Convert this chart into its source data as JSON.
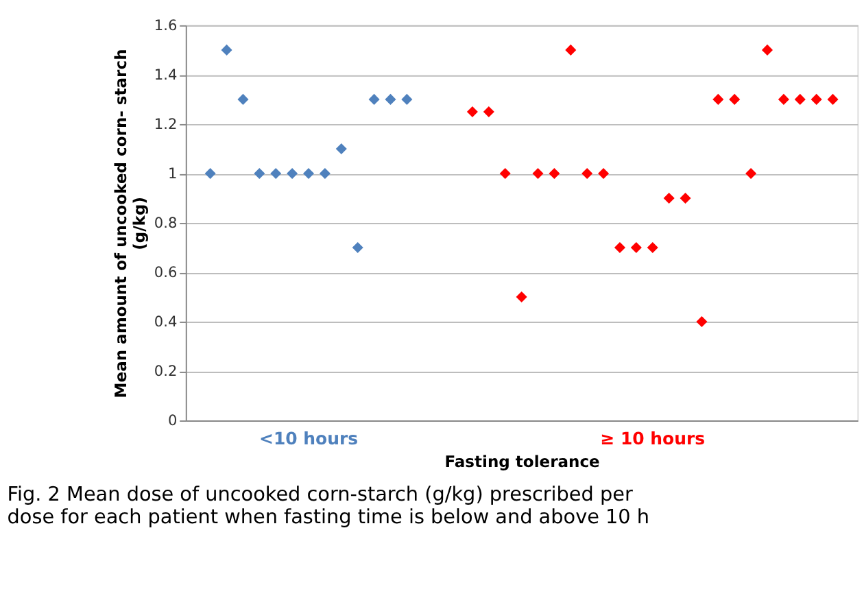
{
  "chart_data": {
    "type": "scatter",
    "xlabel": "Fasting tolerance",
    "ylabel": "Mean  amount of uncooked corn- starch (g/kg)",
    "categories": [
      null,
      null,
      null,
      null,
      null,
      null,
      null,
      null,
      null,
      null,
      null,
      null,
      null,
      null,
      null,
      null,
      null,
      null,
      null,
      null,
      null,
      null,
      null,
      null,
      null,
      null,
      null,
      null,
      null,
      null,
      null,
      null,
      null,
      null,
      null,
      null,
      null,
      null,
      null,
      null,
      null
    ],
    "series": [
      {
        "name": "<10 hours",
        "color": "#4f81bd",
        "values": [
          null,
          1.0,
          1.5,
          1.3,
          1.0,
          1.0,
          1.0,
          1.0,
          1.0,
          1.1,
          0.7,
          1.3,
          1.3,
          1.3,
          null,
          null,
          null,
          null,
          null,
          null,
          null,
          null,
          null,
          null,
          null,
          null,
          null,
          null,
          null,
          null,
          null,
          null,
          null,
          null,
          null,
          null,
          null,
          null,
          null,
          null,
          null
        ]
      },
      {
        "name": "≥ 10 hours",
        "color": "#ff0000",
        "values": [
          null,
          null,
          null,
          null,
          null,
          null,
          null,
          null,
          null,
          null,
          null,
          null,
          null,
          null,
          null,
          null,
          null,
          1.25,
          1.25,
          1.0,
          0.5,
          1.0,
          1.0,
          1.5,
          1.0,
          1.0,
          0.7,
          0.7,
          0.7,
          0.9,
          0.9,
          0.4,
          1.3,
          1.3,
          1.0,
          1.5,
          1.3,
          1.3,
          1.3,
          1.3,
          null
        ]
      }
    ],
    "ylim": [
      0,
      1.6
    ],
    "yticks": [
      0,
      0.2,
      0.4,
      0.6,
      0.8,
      1,
      1.2,
      1.4,
      1.6
    ],
    "grid": "y",
    "marker": "diamond",
    "legend": false,
    "tick_labels": "y",
    "annotations": [
      "Fig. 2 Mean dose of uncooked corn-starch (g/kg) prescribed per dose for each patient when fasting time is below and above 10 h"
    ]
  }
}
